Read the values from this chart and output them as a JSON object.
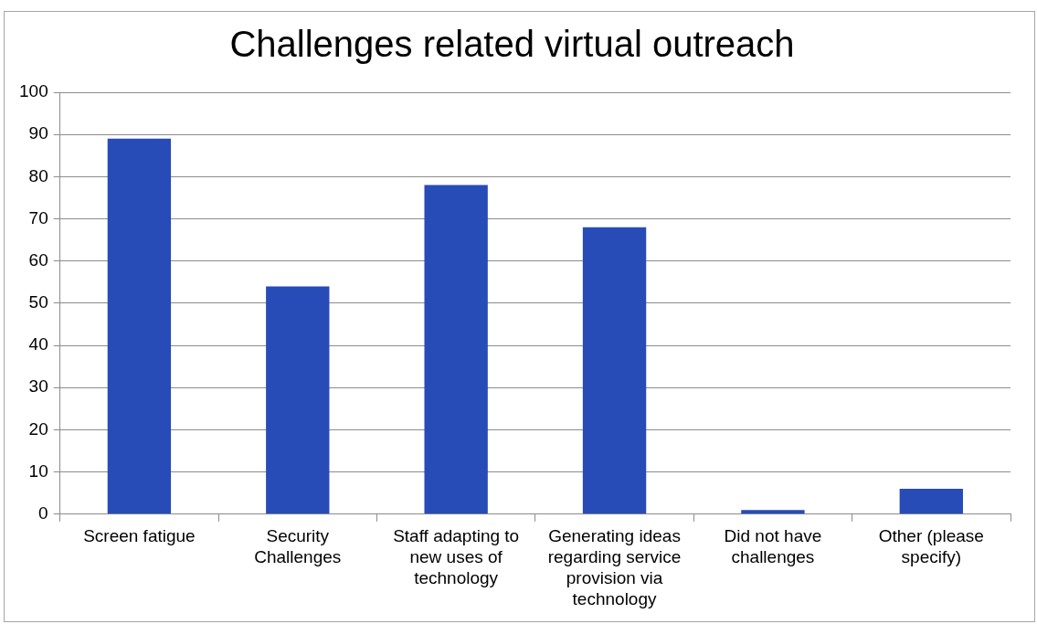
{
  "chart_data": {
    "type": "bar",
    "title": "Challenges related virtual outreach",
    "categories": [
      "Screen fatigue",
      "Security Challenges",
      "Staff adapting to new uses of technology",
      "Generating ideas regarding service provision via technology",
      "Did not have challenges",
      "Other (please specify)"
    ],
    "values": [
      89,
      54,
      78,
      68,
      1,
      6
    ],
    "color": "#274bb7",
    "ylim": [
      0,
      100
    ],
    "yticks": [
      0,
      10,
      20,
      30,
      40,
      50,
      60,
      70,
      80,
      90,
      100
    ],
    "grid": "y"
  }
}
